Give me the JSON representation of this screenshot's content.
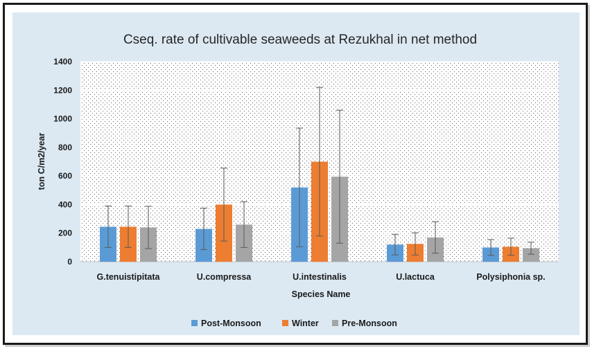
{
  "chart_data": {
    "type": "bar",
    "title": "Cseq. rate of cultivable seaweeds at Rezukhal in net method",
    "xlabel": "Species Name",
    "ylabel": "ton C/m2/year",
    "ylim": [
      0,
      1400
    ],
    "yticks": [
      0,
      200,
      400,
      600,
      800,
      1000,
      1200,
      1400
    ],
    "grid": true,
    "legend_position": "bottom",
    "categories": [
      "G.tenuistipitata",
      "U.compressa",
      "U.intestinalis",
      "U.lactuca",
      "Polysiphonia sp."
    ],
    "series": [
      {
        "name": "Post-Monsoon",
        "color": "#5b9bd5",
        "values": [
          245,
          230,
          520,
          120,
          100
        ],
        "errors": [
          145,
          145,
          415,
          72,
          55
        ]
      },
      {
        "name": "Winter",
        "color": "#ed7d31",
        "values": [
          245,
          400,
          700,
          125,
          105
        ],
        "errors": [
          145,
          255,
          520,
          78,
          60
        ]
      },
      {
        "name": "Pre-Monsoon",
        "color": "#a5a5a5",
        "values": [
          240,
          260,
          595,
          170,
          95
        ],
        "errors": [
          148,
          160,
          465,
          110,
          42
        ]
      }
    ]
  }
}
